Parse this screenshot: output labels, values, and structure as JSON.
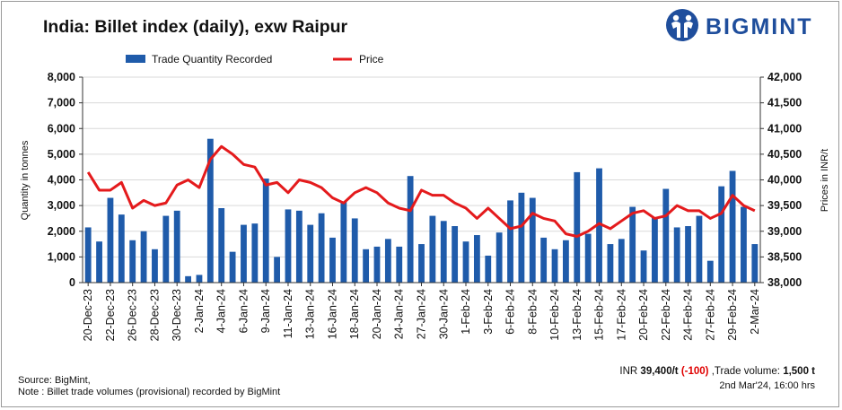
{
  "header": {
    "title": "India: Billet index (daily), exw Raipur",
    "logo_text": "BIGMINT"
  },
  "colors": {
    "bar": "#1f5baa",
    "line": "#e41a1c",
    "logo": "#1f4e9c"
  },
  "chart_data": {
    "type": "bar+line",
    "title": "India: Billet index (daily), exw Raipur",
    "legend": {
      "placement": "top-center",
      "bar_label": "Trade Quantity Recorded",
      "line_label": "Price"
    },
    "ylabel_left": "Quantity in tonnes",
    "ylabel_right": "Prices in INR/t",
    "ylim_left": [
      0,
      8000
    ],
    "ylim_right": [
      38000,
      42000
    ],
    "left_ticks": [
      "0",
      "1,000",
      "2,000",
      "3,000",
      "4,000",
      "5,000",
      "6,000",
      "7,000",
      "8,000"
    ],
    "right_ticks": [
      "38,000",
      "38,500",
      "39,000",
      "39,500",
      "40,000",
      "40,500",
      "41,000",
      "41,500",
      "42,000"
    ],
    "x_labels": [
      "20-Dec-23",
      "22-Dec-23",
      "26-Dec-23",
      "28-Dec-23",
      "30-Dec-23",
      "2-Jan-24",
      "4-Jan-24",
      "6-Jan-24",
      "9-Jan-24",
      "11-Jan-24",
      "13-Jan-24",
      "16-Jan-24",
      "18-Jan-24",
      "20-Jan-24",
      "24-Jan-24",
      "27-Jan-24",
      "30-Jan-24",
      "1-Feb-24",
      "3-Feb-24",
      "6-Feb-24",
      "8-Feb-24",
      "10-Feb-24",
      "13-Feb-24",
      "15-Feb-24",
      "17-Feb-24",
      "20-Feb-24",
      "22-Feb-24",
      "24-Feb-24",
      "27-Feb-24",
      "29-Feb-24",
      "2-Mar-24"
    ],
    "quantity": [
      2150,
      1600,
      3300,
      2650,
      1650,
      2000,
      1300,
      2600,
      2800,
      250,
      300,
      5600,
      2900,
      1200,
      2250,
      2300,
      4050,
      1000,
      2850,
      2800,
      2250,
      2700,
      1750,
      3150,
      2500,
      1300,
      1400,
      1700,
      1400,
      4150,
      1500,
      2600,
      2400,
      2200,
      1600,
      1850,
      1050,
      1950,
      3200,
      3500,
      3300,
      1750,
      1300,
      1650,
      4300,
      1900,
      4450,
      1500,
      1700,
      2950,
      1250,
      2550,
      3650,
      2150,
      2200,
      2600,
      850,
      3750,
      4350,
      2950,
      1500
    ],
    "price": [
      40150,
      39800,
      39800,
      39950,
      39450,
      39600,
      39500,
      39550,
      39900,
      40000,
      39850,
      40400,
      40650,
      40500,
      40300,
      40250,
      39900,
      39950,
      39750,
      40000,
      39950,
      39850,
      39650,
      39550,
      39750,
      39850,
      39750,
      39550,
      39450,
      39400,
      39800,
      39700,
      39700,
      39550,
      39450,
      39250,
      39450,
      39250,
      39050,
      39100,
      39350,
      39250,
      39200,
      38950,
      38900,
      39000,
      39150,
      39050,
      39200,
      39350,
      39400,
      39250,
      39300,
      39500,
      39400,
      39400,
      39250,
      39350,
      39700,
      39500,
      39400
    ]
  },
  "footer": {
    "source": "Source: BigMint,",
    "note": "Note : Billet trade volumes (provisional) recorded by BigMint",
    "price_prefix": "INR ",
    "price_value": "39,400/t",
    "price_change": "(-100)",
    "volume_label": " ,Trade volume: ",
    "volume_value": "1,500 t",
    "timestamp": "2nd Mar'24, 16:00 hrs"
  }
}
